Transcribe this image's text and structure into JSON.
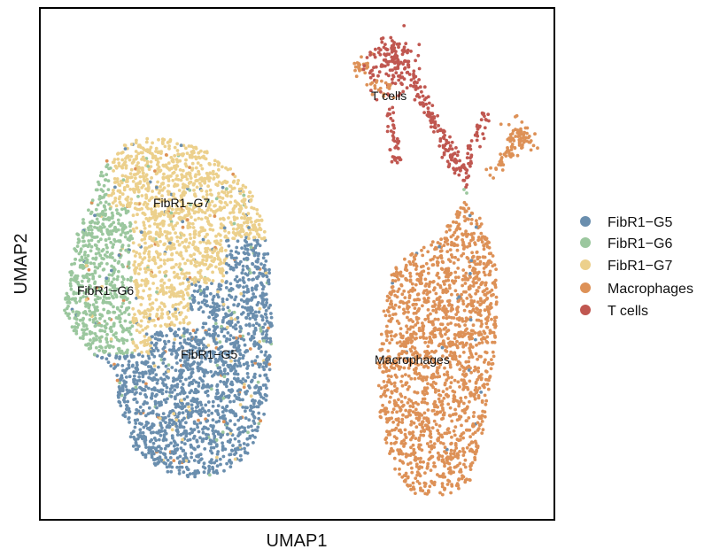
{
  "chart_data": {
    "type": "scatter",
    "title": "",
    "xlabel": "UMAP1",
    "ylabel": "UMAP2",
    "grid": false,
    "legend_position": "right",
    "series": [
      {
        "name": "FibR1−G5",
        "color": "#6A8EAE"
      },
      {
        "name": "FibR1−G6",
        "color": "#9BC79E"
      },
      {
        "name": "FibR1−G7",
        "color": "#ECD08C"
      },
      {
        "name": "Macrophages",
        "color": "#DD9157"
      },
      {
        "name": "T cells",
        "color": "#C05750"
      }
    ],
    "cluster_labels": [
      {
        "series": "FibR1−G7",
        "text": "FibR1−G7"
      },
      {
        "series": "FibR1−G6",
        "text": "FibR1−G6"
      },
      {
        "series": "FibR1−G5",
        "text": "FibR1−G5"
      },
      {
        "series": "T cells",
        "text": "T cells"
      },
      {
        "series": "Macrophages",
        "text": "Macrophages"
      }
    ]
  }
}
